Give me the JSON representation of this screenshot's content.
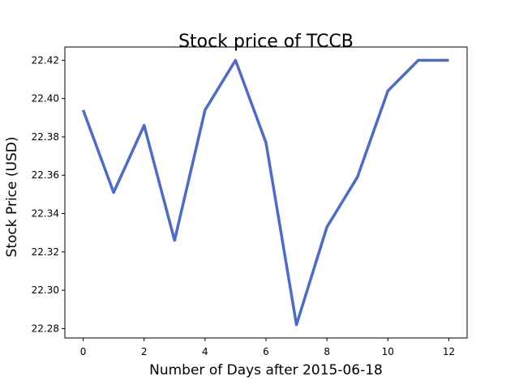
{
  "chart_data": {
    "type": "line",
    "title": "Stock price of TCCB",
    "xlabel": "Number of Days after 2015-06-18",
    "ylabel": "Stock Price (USD)",
    "xlim": [
      -0.6,
      12.6
    ],
    "ylim": [
      22.2751,
      22.4269
    ],
    "x_ticks": [
      0,
      2,
      4,
      6,
      8,
      10,
      12
    ],
    "y_ticks": [
      22.28,
      22.3,
      22.32,
      22.34,
      22.36,
      22.38,
      22.4,
      22.42
    ],
    "x_tick_labels": [
      "0",
      "2",
      "4",
      "6",
      "8",
      "10",
      "12"
    ],
    "y_tick_labels": [
      "22.28",
      "22.30",
      "22.32",
      "22.34",
      "22.36",
      "22.38",
      "22.40",
      "22.42"
    ],
    "grid": false,
    "legend": "none",
    "series": [
      {
        "color": "#4c6bcf",
        "x": [
          0,
          1,
          2,
          3,
          4,
          5,
          6,
          7,
          8,
          9,
          10,
          11,
          12
        ],
        "values": [
          22.394,
          22.351,
          22.386,
          22.326,
          22.394,
          22.42,
          22.377,
          22.282,
          22.333,
          22.359,
          22.404,
          22.42,
          22.42
        ]
      }
    ]
  }
}
